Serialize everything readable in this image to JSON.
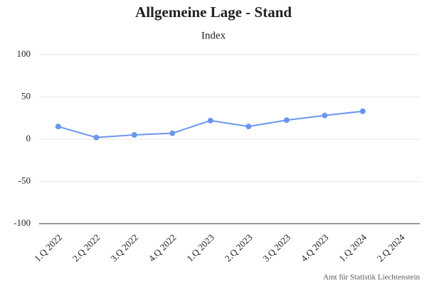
{
  "chart_data": {
    "type": "line",
    "title": "Allgemeine Lage - Stand",
    "subtitle": "Index",
    "categories": [
      "1.Q 2022",
      "2.Q 2022",
      "3.Q 2022",
      "4.Q 2022",
      "1.Q 2023",
      "2.Q 2023",
      "3.Q 2023",
      "4.Q 2023",
      "1.Q 2024",
      "2.Q 2024"
    ],
    "series": [
      {
        "name": "Index",
        "color": "#6b96ef",
        "values": [
          15,
          2,
          5,
          7,
          22,
          15,
          22.5,
          28,
          33,
          null
        ]
      }
    ],
    "ylim": [
      -100,
      100
    ],
    "yticks": [
      -100,
      -50,
      0,
      50,
      100
    ],
    "grid": true,
    "credit": "Amt für Statistik Liechtenstein"
  }
}
